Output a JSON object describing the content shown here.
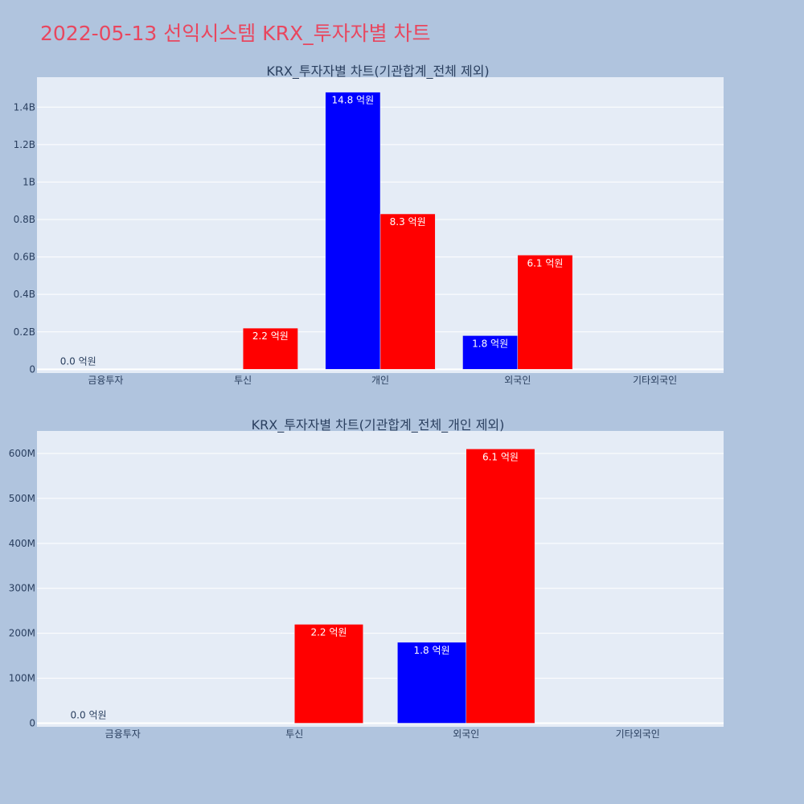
{
  "title": "2022-05-13 선익시스템 KRX_투자자별 차트",
  "colors": {
    "page_bg": "#b0c4de",
    "plot_bg": "#e5ecf6",
    "grid": "#ffffff",
    "title": "#e8475f",
    "text": "#2a3f5f",
    "series_a": "#0000ff",
    "series_b": "#ff0000"
  },
  "chart_data": [
    {
      "type": "bar",
      "title": "KRX_투자자별 차트(기관합계_전체 제외)",
      "categories": [
        "금융투자",
        "투신",
        "개인",
        "외국인",
        "기타외국인"
      ],
      "series": [
        {
          "color": "#0000ff",
          "values": [
            0,
            0,
            1480000000,
            180000000,
            0
          ]
        },
        {
          "color": "#ff0000",
          "values": [
            0,
            220000000,
            830000000,
            610000000,
            0
          ]
        }
      ],
      "bar_labels": [
        {
          "category": "금융투자",
          "series": 0,
          "text": "0.0 억원"
        },
        {
          "category": "개인",
          "series": 0,
          "text": "14.8 억원"
        },
        {
          "category": "외국인",
          "series": 0,
          "text": "1.8 억원"
        },
        {
          "category": "투신",
          "series": 1,
          "text": "2.2 억원"
        },
        {
          "category": "개인",
          "series": 1,
          "text": "8.3 억원"
        },
        {
          "category": "외국인",
          "series": 1,
          "text": "6.1 억원"
        }
      ],
      "yticks": [
        0,
        200000000,
        400000000,
        600000000,
        800000000,
        1000000000,
        1200000000,
        1400000000
      ],
      "ytick_labels": [
        "0",
        "0.2B",
        "0.4B",
        "0.6B",
        "0.8B",
        "1B",
        "1.2B",
        "1.4B"
      ],
      "ylim": [
        -20000000,
        1560000000
      ],
      "grid": true,
      "legend": false
    },
    {
      "type": "bar",
      "title": "KRX_투자자별 차트(기관합계_전체_개인 제외)",
      "categories": [
        "금융투자",
        "투신",
        "외국인",
        "기타외국인"
      ],
      "series": [
        {
          "color": "#0000ff",
          "values": [
            0,
            0,
            180000000,
            0
          ]
        },
        {
          "color": "#ff0000",
          "values": [
            0,
            220000000,
            610000000,
            0
          ]
        }
      ],
      "bar_labels": [
        {
          "category": "금융투자",
          "series": 0,
          "text": "0.0 억원"
        },
        {
          "category": "외국인",
          "series": 0,
          "text": "1.8 억원"
        },
        {
          "category": "투신",
          "series": 1,
          "text": "2.2 억원"
        },
        {
          "category": "외국인",
          "series": 1,
          "text": "6.1 억원"
        }
      ],
      "yticks": [
        0,
        100000000,
        200000000,
        300000000,
        400000000,
        500000000,
        600000000
      ],
      "ytick_labels": [
        "0",
        "100M",
        "200M",
        "300M",
        "400M",
        "500M",
        "600M"
      ],
      "ylim": [
        -8000000,
        650000000
      ],
      "grid": true,
      "legend": false
    }
  ]
}
